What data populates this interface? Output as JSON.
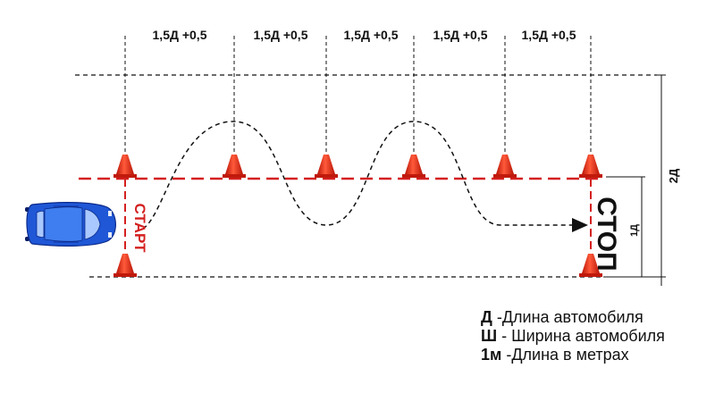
{
  "dimensions": {
    "gap_labels": [
      "1,5Д +0,5",
      "1,5Д +0,5",
      "1,5Д +0,5",
      "1,5Д +0,5",
      "1,5Д +0,5"
    ],
    "total_width": "2Д",
    "lane_width": "1Д"
  },
  "markers": {
    "start": "СТАРТ",
    "stop": "СТОП"
  },
  "legend": [
    {
      "key": "Д",
      "sep": " -",
      "text": "Длина автомобиля"
    },
    {
      "key": "Ш",
      "sep": " - ",
      "text": "Ширина автомобиля"
    },
    {
      "key": "1м",
      "sep": " -",
      "text": "Длина в метрах"
    }
  ],
  "colors": {
    "accent_red": "#d42020",
    "cone_red": "#e02a1a",
    "car_blue": "#1f57d6",
    "line_black": "#111111"
  },
  "icons": {
    "car": "car-icon",
    "cone": "traffic-cone-icon",
    "arrow": "arrow-right-icon"
  }
}
